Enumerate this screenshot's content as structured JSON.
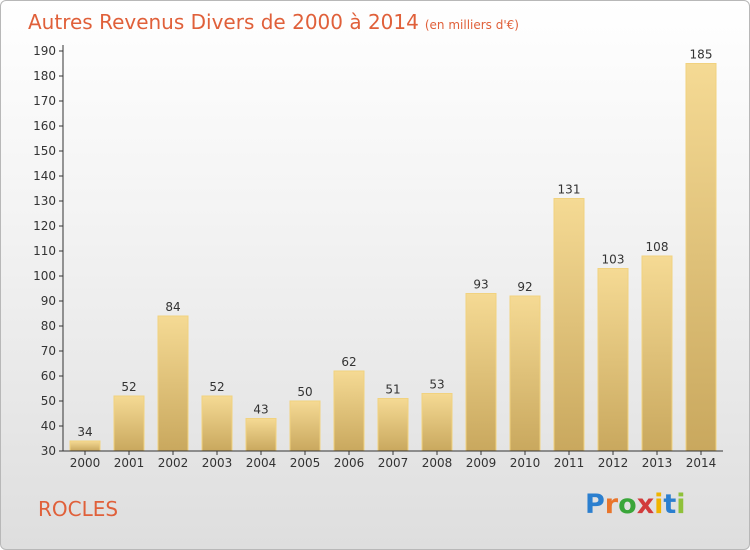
{
  "title": "Autres Revenus Divers de 2000 à 2014",
  "unit": "(en milliers d'€)",
  "town": "ROCLES",
  "logo": {
    "text": "Proxiti",
    "letters": [
      "P",
      "r",
      "o",
      "x",
      "i",
      "t",
      "i"
    ],
    "colors": [
      "#2b7fcf",
      "#e9752b",
      "#3aa63a",
      "#d23c3c",
      "#f0b400",
      "#2b7fcf",
      "#8fc13a"
    ]
  },
  "colors": {
    "title": "#e0603a",
    "bar_top": "#f5da94",
    "bar_bottom": "#c9a85e",
    "axis": "#333333"
  },
  "chart_data": {
    "type": "bar",
    "title": "Autres Revenus Divers de 2000 à 2014",
    "categories": [
      "2000",
      "2001",
      "2002",
      "2003",
      "2004",
      "2005",
      "2006",
      "2007",
      "2008",
      "2009",
      "2010",
      "2011",
      "2012",
      "2013",
      "2014"
    ],
    "values": [
      34,
      52,
      84,
      52,
      43,
      50,
      62,
      51,
      53,
      93,
      92,
      131,
      103,
      108,
      185
    ],
    "ylim": [
      30,
      190
    ],
    "yticks": [
      30,
      40,
      50,
      60,
      70,
      80,
      90,
      100,
      110,
      120,
      130,
      140,
      150,
      160,
      170,
      180,
      190
    ],
    "xlabel": "",
    "ylabel": "",
    "grid": false,
    "data_labels": true
  }
}
